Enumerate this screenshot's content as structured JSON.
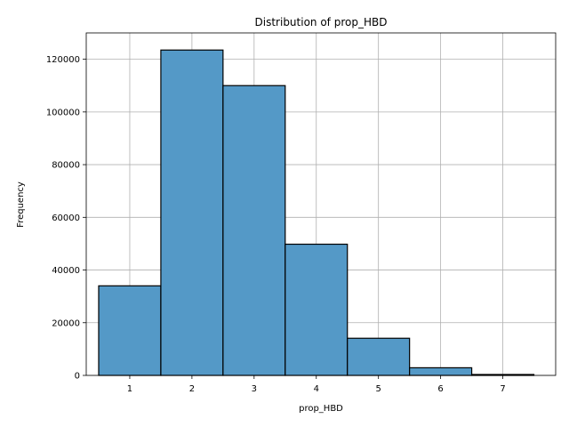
{
  "chart_data": {
    "type": "bar",
    "title": "Distribution of prop_HBD",
    "xlabel": "prop_HBD",
    "ylabel": "Frequency",
    "bins": [
      {
        "x": 1,
        "value": 34000
      },
      {
        "x": 2,
        "value": 123500
      },
      {
        "x": 3,
        "value": 110000
      },
      {
        "x": 4,
        "value": 49800
      },
      {
        "x": 5,
        "value": 14100
      },
      {
        "x": 6,
        "value": 2900
      },
      {
        "x": 7,
        "value": 350
      }
    ],
    "xlim": [
      0.3,
      7.85
    ],
    "ylim": [
      0,
      130000
    ],
    "xticks": [
      "1",
      "2",
      "3",
      "4",
      "5",
      "6",
      "7"
    ],
    "yticks": [
      "0",
      "20000",
      "40000",
      "60000",
      "80000",
      "100000",
      "120000"
    ],
    "grid": true,
    "bar_color": "#5499c7",
    "edge_color": "#000000"
  }
}
